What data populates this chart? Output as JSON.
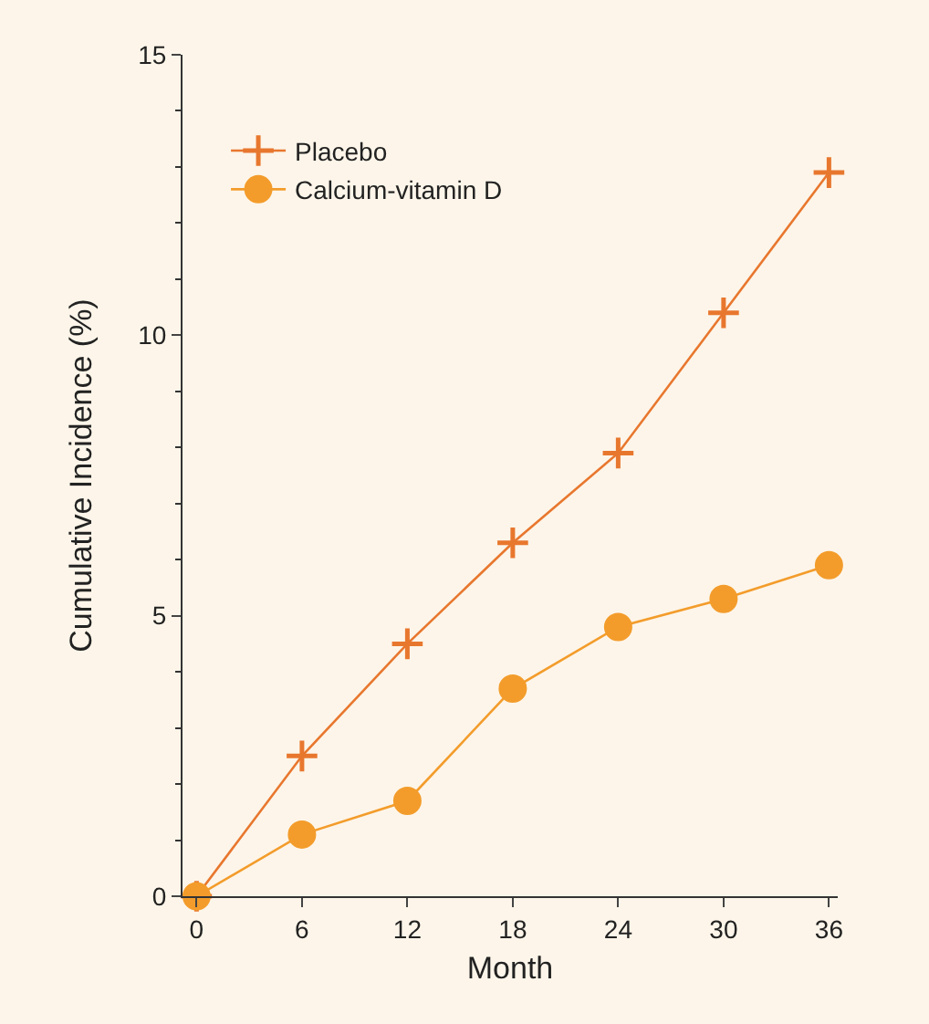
{
  "chart_data": {
    "type": "line",
    "xlabel": "Month",
    "ylabel": "Cumulative Incidence (%)",
    "x": [
      0,
      6,
      12,
      18,
      24,
      30,
      36
    ],
    "series": [
      {
        "name": "Placebo",
        "color": "#e8772e",
        "marker": "cross",
        "values": [
          0,
          2.5,
          4.5,
          6.3,
          7.9,
          10.4,
          12.9
        ]
      },
      {
        "name": "Calcium-vitamin D",
        "color": "#f39c2b",
        "marker": "circle",
        "values": [
          0,
          1.1,
          1.7,
          3.7,
          4.8,
          5.3,
          5.9
        ]
      }
    ],
    "xlim": [
      -0.8,
      36.5
    ],
    "ylim": [
      0,
      15
    ],
    "xticks": [
      0,
      6,
      12,
      18,
      24,
      30,
      36
    ],
    "yticks": [
      0,
      5,
      10,
      15
    ],
    "legend": "top left",
    "grid": false
  }
}
